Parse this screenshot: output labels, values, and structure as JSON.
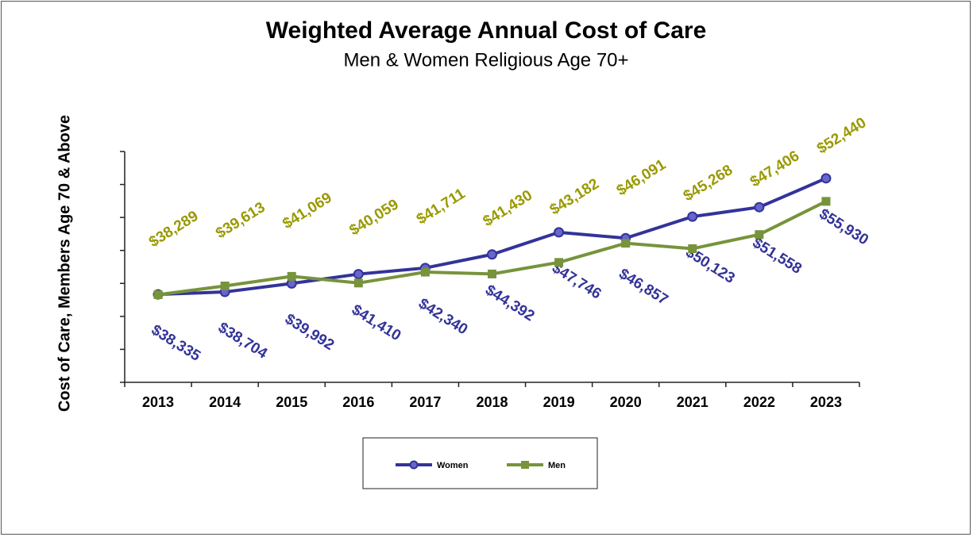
{
  "chart_data": {
    "type": "line",
    "title": "Weighted Average Annual Cost of Care",
    "subtitle": "Men & Women Religious Age 70+",
    "y_label": "Cost of Care, Members Age 70 & Above",
    "categories": [
      "2013",
      "2014",
      "2015",
      "2016",
      "2017",
      "2018",
      "2019",
      "2020",
      "2021",
      "2022",
      "2023"
    ],
    "series": [
      {
        "name": "Women",
        "color": "#333399",
        "label_color": "#333399",
        "values": [
          38335,
          38704,
          39992,
          41410,
          42340,
          44392,
          47746,
          46857,
          50123,
          51558,
          55930
        ],
        "value_labels": [
          "$38,335",
          "$38,704",
          "$39,992",
          "$41,410",
          "$42,340",
          "$44,392",
          "$47,746",
          "$46,857",
          "$50,123",
          "$51,558",
          "$55,930"
        ]
      },
      {
        "name": "Men",
        "color": "#77933c",
        "label_color": "#999900",
        "values": [
          38289,
          39613,
          41069,
          40059,
          41711,
          41430,
          43182,
          46091,
          45268,
          47406,
          52440
        ],
        "value_labels": [
          "$38,289",
          "$39,613",
          "$41,069",
          "$40,059",
          "$41,711",
          "$41,430",
          "$43,182",
          "$46,091",
          "$45,268",
          "$47,406",
          "$52,440"
        ]
      }
    ],
    "ylim": [
      25000,
      60000
    ],
    "yticks": [
      25000,
      30000,
      35000,
      40000,
      45000,
      50000,
      55000,
      60000
    ],
    "legend": "bottom"
  }
}
